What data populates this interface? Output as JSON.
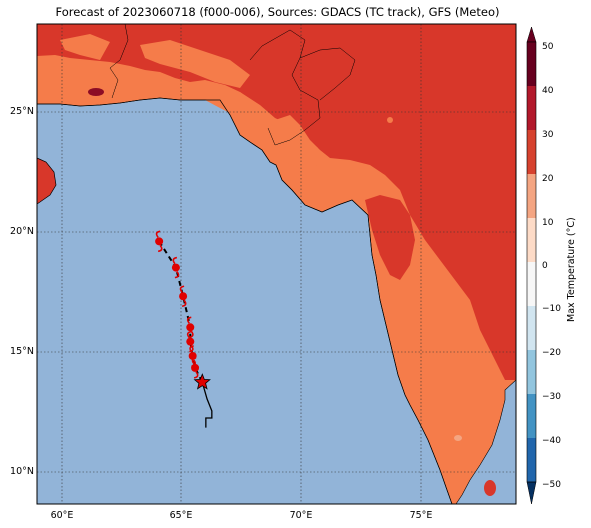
{
  "title": "Forecast of 2023060718 (f000-006), Sources: GDACS (TC track), GFS (Meteo)",
  "map": {
    "lat_labels": [
      "25°N",
      "20°N",
      "15°N",
      "10°N"
    ],
    "lon_labels": [
      "60°E",
      "65°E",
      "70°E",
      "75°E"
    ],
    "lon_range": [
      59,
      79
    ],
    "lat_range": [
      8.7,
      28.8
    ]
  },
  "colorbar": {
    "label": "Max Temperature (°C)",
    "ticks": [
      "50",
      "40",
      "30",
      "20",
      "10",
      "0",
      "−10",
      "−20",
      "−30",
      "−40",
      "−50"
    ],
    "colors": [
      "#67001f",
      "#b2182b",
      "#d6422f",
      "#f4a582",
      "#fddbc7",
      "#f7f7f7",
      "#d1e5f0",
      "#92c5de",
      "#4393c3",
      "#2166ac",
      "#053061"
    ]
  },
  "track": {
    "points": [
      {
        "lon": 64.1,
        "lat": 19.7
      },
      {
        "lon": 64.8,
        "lat": 18.6
      },
      {
        "lon": 65.1,
        "lat": 17.4
      },
      {
        "lon": 65.4,
        "lat": 16.1
      },
      {
        "lon": 65.4,
        "lat": 15.5
      },
      {
        "lon": 65.5,
        "lat": 14.9
      },
      {
        "lon": 65.6,
        "lat": 14.4
      },
      {
        "lon": 65.9,
        "lat": 13.8
      }
    ],
    "current_position": {
      "lon": 65.9,
      "lat": 13.8
    },
    "tail": [
      {
        "lon": 65.9,
        "lat": 13.8
      },
      {
        "lon": 66.1,
        "lat": 13.1
      },
      {
        "lon": 66.3,
        "lat": 12.6
      },
      {
        "lon": 66.3,
        "lat": 12.3
      },
      {
        "lon": 66.05,
        "lat": 12.3
      },
      {
        "lon": 66.05,
        "lat": 11.9
      }
    ]
  }
}
